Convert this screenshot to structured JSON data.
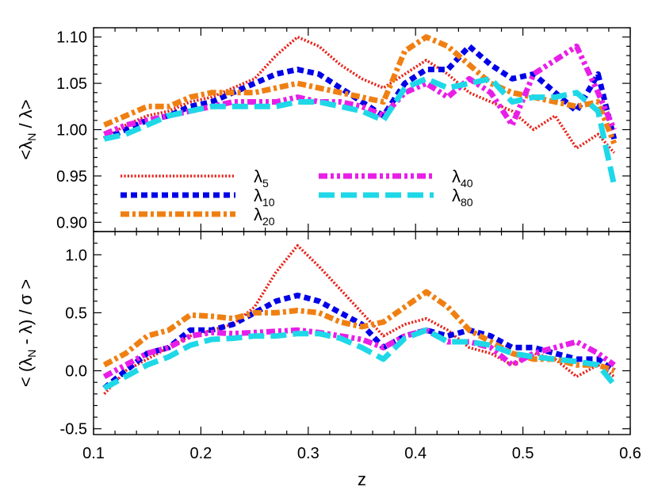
{
  "chart_data": [
    {
      "type": "line",
      "panel": "top",
      "ylabel_parts": {
        "pre": "<",
        "lam": "λ",
        "sub": "N",
        "post": " / λ>"
      },
      "xlabel": "",
      "xlim": [
        0.1,
        0.6
      ],
      "ylim": [
        0.89,
        1.11
      ],
      "yticks": [
        0.9,
        0.95,
        1.0,
        1.05,
        1.1
      ],
      "ytick_labels": [
        "0.90",
        "0.95",
        "1.00",
        "1.05",
        "1.10"
      ],
      "xtick_labels_visible": false,
      "legend": {
        "columns": 2,
        "placement": "lower-left"
      },
      "series": [
        {
          "name": "λ5",
          "lam": "λ",
          "sub": "5",
          "color": "#e8241c",
          "style": "dotted",
          "x": [
            0.11,
            0.13,
            0.15,
            0.17,
            0.19,
            0.21,
            0.23,
            0.25,
            0.27,
            0.29,
            0.31,
            0.33,
            0.35,
            0.37,
            0.39,
            0.41,
            0.43,
            0.45,
            0.47,
            0.49,
            0.51,
            0.53,
            0.55,
            0.57,
            0.585
          ],
          "y": [
            0.99,
            1.005,
            1.015,
            1.02,
            1.03,
            1.035,
            1.045,
            1.055,
            1.08,
            1.1,
            1.09,
            1.07,
            1.055,
            1.045,
            1.06,
            1.075,
            1.06,
            1.04,
            1.03,
            1.02,
            1.0,
            1.015,
            0.98,
            0.995,
            0.975
          ]
        },
        {
          "name": "λ10",
          "lam": "λ",
          "sub": "10",
          "color": "#0000e8",
          "style": "dense-dash",
          "x": [
            0.11,
            0.13,
            0.15,
            0.17,
            0.19,
            0.21,
            0.23,
            0.25,
            0.27,
            0.29,
            0.31,
            0.33,
            0.35,
            0.37,
            0.39,
            0.41,
            0.43,
            0.45,
            0.47,
            0.49,
            0.51,
            0.53,
            0.55,
            0.57,
            0.585
          ],
          "y": [
            0.99,
            1.0,
            1.01,
            1.015,
            1.025,
            1.03,
            1.04,
            1.05,
            1.06,
            1.065,
            1.06,
            1.045,
            1.03,
            1.015,
            1.05,
            1.065,
            1.065,
            1.09,
            1.07,
            1.055,
            1.06,
            1.04,
            1.02,
            1.06,
            0.99
          ]
        },
        {
          "name": "λ20",
          "lam": "λ",
          "sub": "20",
          "color": "#f07f12",
          "style": "dash-dot",
          "x": [
            0.11,
            0.13,
            0.15,
            0.17,
            0.19,
            0.21,
            0.23,
            0.25,
            0.27,
            0.29,
            0.31,
            0.33,
            0.35,
            0.37,
            0.39,
            0.41,
            0.43,
            0.45,
            0.47,
            0.49,
            0.51,
            0.53,
            0.55,
            0.57,
            0.585
          ],
          "y": [
            1.005,
            1.015,
            1.025,
            1.025,
            1.035,
            1.04,
            1.04,
            1.04,
            1.045,
            1.05,
            1.045,
            1.04,
            1.035,
            1.03,
            1.085,
            1.1,
            1.09,
            1.07,
            1.05,
            1.04,
            1.035,
            1.03,
            1.025,
            1.03,
            0.985
          ]
        },
        {
          "name": "λ40",
          "lam": "λ",
          "sub": "40",
          "color": "#e81ee8",
          "style": "dash-dot-dot",
          "x": [
            0.11,
            0.13,
            0.15,
            0.17,
            0.19,
            0.21,
            0.23,
            0.25,
            0.27,
            0.29,
            0.31,
            0.33,
            0.35,
            0.37,
            0.39,
            0.41,
            0.43,
            0.45,
            0.47,
            0.49,
            0.51,
            0.53,
            0.55,
            0.57,
            0.585
          ],
          "y": [
            0.995,
            1.005,
            1.01,
            1.015,
            1.02,
            1.025,
            1.03,
            1.03,
            1.03,
            1.035,
            1.03,
            1.03,
            1.025,
            1.015,
            1.04,
            1.05,
            1.035,
            1.055,
            1.04,
            1.005,
            1.06,
            1.075,
            1.09,
            1.04,
            1.0
          ]
        },
        {
          "name": "λ80",
          "lam": "λ",
          "sub": "80",
          "color": "#1ed8e8",
          "style": "long-dash",
          "x": [
            0.11,
            0.13,
            0.15,
            0.17,
            0.19,
            0.21,
            0.23,
            0.25,
            0.27,
            0.29,
            0.31,
            0.33,
            0.35,
            0.37,
            0.39,
            0.41,
            0.43,
            0.45,
            0.47,
            0.49,
            0.51,
            0.53,
            0.55,
            0.57,
            0.585
          ],
          "y": [
            0.99,
            0.995,
            1.005,
            1.015,
            1.02,
            1.025,
            1.025,
            1.025,
            1.025,
            1.03,
            1.03,
            1.025,
            1.02,
            1.01,
            1.045,
            1.055,
            1.045,
            1.05,
            1.055,
            1.03,
            1.035,
            1.035,
            1.04,
            1.02,
            0.94
          ]
        }
      ]
    },
    {
      "type": "line",
      "panel": "bottom",
      "ylabel_parts": {
        "pre": "< (",
        "lam": "λ",
        "sub": "N",
        "post": " - λ) / σ >"
      },
      "xlabel": "z",
      "xlim": [
        0.1,
        0.6
      ],
      "ylim": [
        -0.55,
        1.2
      ],
      "xticks": [
        0.1,
        0.2,
        0.3,
        0.4,
        0.5,
        0.6
      ],
      "xtick_labels": [
        "0.1",
        "0.2",
        "0.3",
        "0.4",
        "0.5",
        "0.6"
      ],
      "yticks": [
        -0.5,
        0.0,
        0.5,
        1.0
      ],
      "ytick_labels": [
        "-0.5",
        "0.0",
        "0.5",
        "1.0"
      ],
      "series": [
        {
          "name": "λ5",
          "color": "#e8241c",
          "style": "dotted",
          "x": [
            0.11,
            0.13,
            0.15,
            0.17,
            0.19,
            0.21,
            0.23,
            0.25,
            0.27,
            0.29,
            0.31,
            0.33,
            0.35,
            0.37,
            0.39,
            0.41,
            0.43,
            0.45,
            0.47,
            0.49,
            0.51,
            0.53,
            0.55,
            0.57,
            0.585
          ],
          "y": [
            -0.2,
            0.0,
            0.1,
            0.2,
            0.3,
            0.35,
            0.4,
            0.55,
            0.85,
            1.08,
            0.9,
            0.7,
            0.5,
            0.3,
            0.4,
            0.45,
            0.35,
            0.2,
            0.15,
            0.05,
            0.15,
            0.1,
            -0.05,
            0.05,
            -0.05
          ]
        },
        {
          "name": "λ10",
          "color": "#0000e8",
          "style": "dense-dash",
          "x": [
            0.11,
            0.13,
            0.15,
            0.17,
            0.19,
            0.21,
            0.23,
            0.25,
            0.27,
            0.29,
            0.31,
            0.33,
            0.35,
            0.37,
            0.39,
            0.41,
            0.43,
            0.45,
            0.47,
            0.49,
            0.51,
            0.53,
            0.55,
            0.57,
            0.585
          ],
          "y": [
            -0.15,
            0.0,
            0.15,
            0.2,
            0.35,
            0.35,
            0.4,
            0.5,
            0.6,
            0.65,
            0.6,
            0.5,
            0.4,
            0.2,
            0.3,
            0.35,
            0.3,
            0.35,
            0.3,
            0.2,
            0.2,
            0.15,
            0.1,
            0.1,
            0.0
          ]
        },
        {
          "name": "λ20",
          "color": "#f07f12",
          "style": "dash-dot",
          "x": [
            0.11,
            0.13,
            0.15,
            0.17,
            0.19,
            0.21,
            0.23,
            0.25,
            0.27,
            0.29,
            0.31,
            0.33,
            0.35,
            0.37,
            0.39,
            0.41,
            0.43,
            0.45,
            0.47,
            0.49,
            0.51,
            0.53,
            0.55,
            0.57,
            0.585
          ],
          "y": [
            0.05,
            0.15,
            0.3,
            0.35,
            0.48,
            0.47,
            0.45,
            0.5,
            0.5,
            0.52,
            0.5,
            0.42,
            0.38,
            0.42,
            0.55,
            0.68,
            0.55,
            0.35,
            0.25,
            0.15,
            0.1,
            0.1,
            0.05,
            0.05,
            0.0
          ]
        },
        {
          "name": "λ40",
          "color": "#e81ee8",
          "style": "dash-dot-dot",
          "x": [
            0.11,
            0.13,
            0.15,
            0.17,
            0.19,
            0.21,
            0.23,
            0.25,
            0.27,
            0.29,
            0.31,
            0.33,
            0.35,
            0.37,
            0.39,
            0.41,
            0.43,
            0.45,
            0.47,
            0.49,
            0.51,
            0.53,
            0.55,
            0.57,
            0.585
          ],
          "y": [
            -0.05,
            0.05,
            0.15,
            0.2,
            0.3,
            0.33,
            0.32,
            0.33,
            0.34,
            0.35,
            0.33,
            0.3,
            0.27,
            0.2,
            0.3,
            0.35,
            0.25,
            0.25,
            0.2,
            0.05,
            0.15,
            0.2,
            0.25,
            0.15,
            0.05
          ]
        },
        {
          "name": "λ80",
          "color": "#1ed8e8",
          "style": "long-dash",
          "x": [
            0.11,
            0.13,
            0.15,
            0.17,
            0.19,
            0.21,
            0.23,
            0.25,
            0.27,
            0.29,
            0.31,
            0.33,
            0.35,
            0.37,
            0.39,
            0.41,
            0.43,
            0.45,
            0.47,
            0.49,
            0.51,
            0.53,
            0.55,
            0.57,
            0.585
          ],
          "y": [
            -0.15,
            -0.05,
            0.05,
            0.12,
            0.22,
            0.27,
            0.28,
            0.3,
            0.3,
            0.32,
            0.32,
            0.28,
            0.2,
            0.1,
            0.28,
            0.35,
            0.25,
            0.25,
            0.22,
            0.15,
            0.12,
            0.1,
            0.08,
            0.05,
            -0.12
          ]
        }
      ]
    }
  ]
}
